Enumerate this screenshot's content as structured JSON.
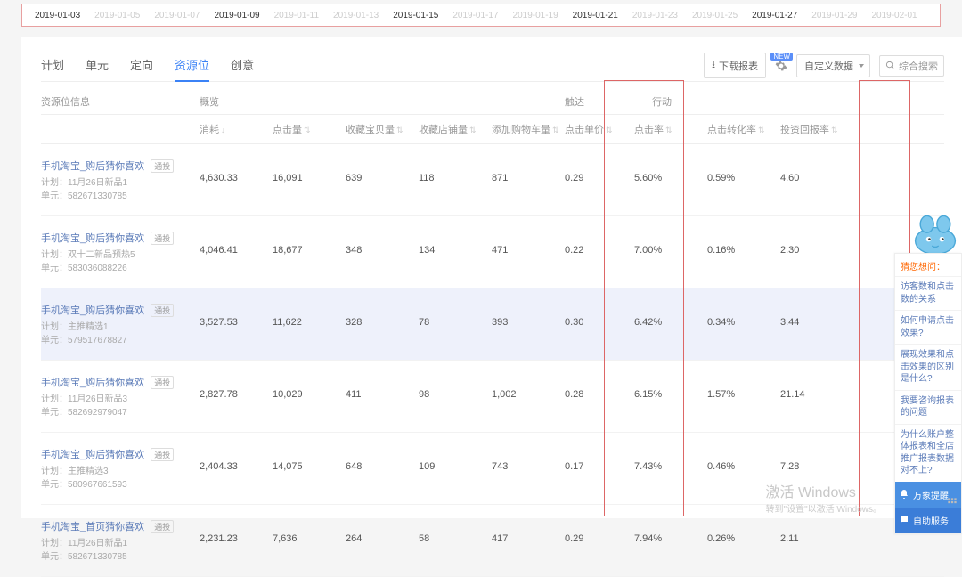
{
  "dates": {
    "items": [
      "2019-01-03",
      "2019-01-05",
      "2019-01-07",
      "2019-01-09",
      "2019-01-11",
      "2019-01-13",
      "2019-01-15",
      "2019-01-17",
      "2019-01-19",
      "2019-01-21",
      "2019-01-23",
      "2019-01-25",
      "2019-01-27",
      "2019-01-29",
      "2019-02-01"
    ],
    "active": [
      0,
      3,
      6,
      9,
      12
    ]
  },
  "tabs": {
    "items": [
      "计划",
      "单元",
      "定向",
      "资源位",
      "创意"
    ],
    "active": 3
  },
  "toolbar": {
    "download": "下载报表",
    "new_badge": "NEW",
    "custom": "自定义数据",
    "search_placeholder": "综合搜索"
  },
  "groups": {
    "info": "资源位信息",
    "overview": "概览",
    "touch": "触达",
    "action": "行动"
  },
  "cols": {
    "consume": "消耗",
    "clicks": "点击量",
    "fav_item": "收藏宝贝量",
    "fav_shop": "收藏店铺量",
    "add_cart": "添加购物车量",
    "cpc": "点击单价",
    "ctr": "点击率",
    "cvr": "点击转化率",
    "roi": "投资回报率"
  },
  "tag_label": "通投",
  "rows": [
    {
      "title": "手机淘宝_购后猜你喜欢",
      "plan": "计划：11月26日新品1",
      "unit": "单元：582671330785",
      "c": [
        "4,630.33",
        "16,091",
        "639",
        "118",
        "871",
        "0.29",
        "5.60%",
        "0.59%",
        "4.60"
      ],
      "hover": false
    },
    {
      "title": "手机淘宝_购后猜你喜欢",
      "plan": "计划：双十二新品预热5",
      "unit": "单元：583036088226",
      "c": [
        "4,046.41",
        "18,677",
        "348",
        "134",
        "471",
        "0.22",
        "7.00%",
        "0.16%",
        "2.30"
      ],
      "hover": false
    },
    {
      "title": "手机淘宝_购后猜你喜欢",
      "plan": "计划：主推精选1",
      "unit": "单元：579517678827",
      "c": [
        "3,527.53",
        "11,622",
        "328",
        "78",
        "393",
        "0.30",
        "6.42%",
        "0.34%",
        "3.44"
      ],
      "hover": true
    },
    {
      "title": "手机淘宝_购后猜你喜欢",
      "plan": "计划：11月26日新品3",
      "unit": "单元：582692979047",
      "c": [
        "2,827.78",
        "10,029",
        "411",
        "98",
        "1,002",
        "0.28",
        "6.15%",
        "1.57%",
        "21.14"
      ],
      "hover": false
    },
    {
      "title": "手机淘宝_购后猜你喜欢",
      "plan": "计划：主推精选3",
      "unit": "单元：580967661593",
      "c": [
        "2,404.33",
        "14,075",
        "648",
        "109",
        "743",
        "0.17",
        "7.43%",
        "0.46%",
        "7.28"
      ],
      "hover": false
    },
    {
      "title": "手机淘宝_首页猜你喜欢",
      "plan": "计划：11月26日新品1",
      "unit": "单元：582671330785",
      "c": [
        "2,231.23",
        "7,636",
        "264",
        "58",
        "417",
        "0.29",
        "7.94%",
        "0.26%",
        "2.11"
      ],
      "hover": false
    }
  ],
  "side": {
    "title": "猜您想问：",
    "items": [
      "访客数和点击数的关系",
      "如何申请点击效果?",
      "展现效果和点击效果的区别是什么?",
      "我要咨询报表的问题",
      "为什么账户整体报表和全店推广报表数据对不上?"
    ],
    "btn1": "万象提醒",
    "btn2": "自助服务"
  },
  "watermark": {
    "l1": "激活 Windows",
    "l2": "转到\"设置\"以激活 Windows。"
  },
  "colors": {
    "accent": "#3b82f6",
    "link": "#5b7bb8",
    "border_red": "#d66",
    "badge": "#5b8ff9",
    "side_blue1": "#4a90e2",
    "side_blue2": "#3b7dd8",
    "orange": "#f60"
  }
}
